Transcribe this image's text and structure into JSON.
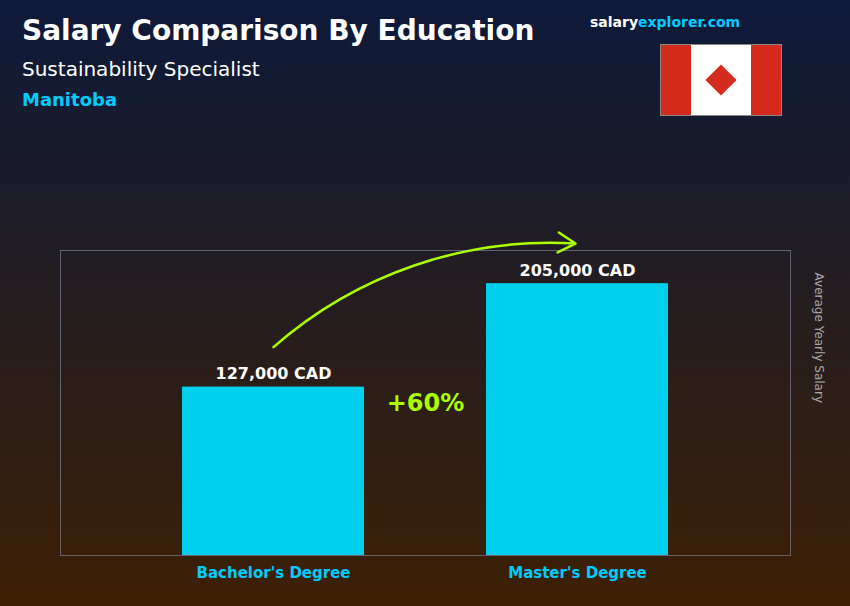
{
  "chart_data": {
    "type": "bar",
    "title": "Salary Comparison By Education",
    "subtitle": "Sustainability Specialist",
    "annotations": [
      "Manitoba",
      "salary",
      "explorer.com",
      "+60%"
    ],
    "ylabel": "Average Yearly Salary",
    "categories": [
      "Bachelor's Degree",
      "Master's Degree"
    ],
    "values": [
      127000,
      205000
    ],
    "value_labels": [
      "127,000 CAD",
      "205,000 CAD"
    ],
    "color": "#00CFEE",
    "ylim": [
      0,
      230000
    ],
    "grid": false,
    "data_labels": true,
    "tick_labels": "x"
  }
}
